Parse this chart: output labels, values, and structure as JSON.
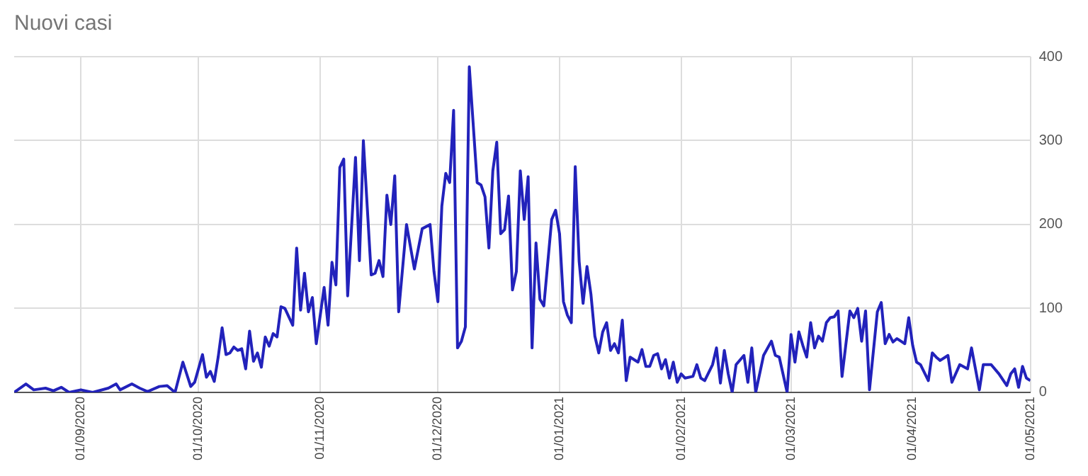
{
  "chart_data": {
    "type": "line",
    "title": "Nuovi casi",
    "x": [
      "2020-08-15",
      "2020-08-18",
      "2020-08-20",
      "2020-08-23",
      "2020-08-25",
      "2020-08-27",
      "2020-08-29",
      "2020-09-01",
      "2020-09-04",
      "2020-09-08",
      "2020-09-10",
      "2020-09-11",
      "2020-09-14",
      "2020-09-16",
      "2020-09-18",
      "2020-09-21",
      "2020-09-23",
      "2020-09-25",
      "2020-09-27",
      "2020-09-29",
      "2020-09-30",
      "2020-10-02",
      "2020-10-03",
      "2020-10-04",
      "2020-10-05",
      "2020-10-06",
      "2020-10-07",
      "2020-10-08",
      "2020-10-09",
      "2020-10-10",
      "2020-10-11",
      "2020-10-12",
      "2020-10-13",
      "2020-10-14",
      "2020-10-15",
      "2020-10-16",
      "2020-10-17",
      "2020-10-18",
      "2020-10-19",
      "2020-10-20",
      "2020-10-21",
      "2020-10-22",
      "2020-10-23",
      "2020-10-25",
      "2020-10-26",
      "2020-10-27",
      "2020-10-28",
      "2020-10-29",
      "2020-10-30",
      "2020-10-31",
      "2020-11-02",
      "2020-11-03",
      "2020-11-04",
      "2020-11-05",
      "2020-11-06",
      "2020-11-07",
      "2020-11-08",
      "2020-11-10",
      "2020-11-11",
      "2020-11-12",
      "2020-11-14",
      "2020-11-15",
      "2020-11-16",
      "2020-11-17",
      "2020-11-18",
      "2020-11-19",
      "2020-11-20",
      "2020-11-21",
      "2020-11-23",
      "2020-11-25",
      "2020-11-27",
      "2020-11-29",
      "2020-11-30",
      "2020-12-01",
      "2020-12-02",
      "2020-12-03",
      "2020-12-04",
      "2020-12-05",
      "2020-12-06",
      "2020-12-07",
      "2020-12-08",
      "2020-12-09",
      "2020-12-11",
      "2020-12-12",
      "2020-12-13",
      "2020-12-14",
      "2020-12-15",
      "2020-12-16",
      "2020-12-17",
      "2020-12-18",
      "2020-12-19",
      "2020-12-20",
      "2020-12-21",
      "2020-12-22",
      "2020-12-23",
      "2020-12-24",
      "2020-12-25",
      "2020-12-26",
      "2020-12-27",
      "2020-12-28",
      "2020-12-30",
      "2020-12-31",
      "2021-01-01",
      "2021-01-02",
      "2021-01-03",
      "2021-01-04",
      "2021-01-05",
      "2021-01-06",
      "2021-01-07",
      "2021-01-08",
      "2021-01-09",
      "2021-01-10",
      "2021-01-11",
      "2021-01-12",
      "2021-01-13",
      "2021-01-14",
      "2021-01-15",
      "2021-01-16",
      "2021-01-17",
      "2021-01-18",
      "2021-01-19",
      "2021-01-20",
      "2021-01-21",
      "2021-01-22",
      "2021-01-23",
      "2021-01-24",
      "2021-01-25",
      "2021-01-26",
      "2021-01-27",
      "2021-01-28",
      "2021-01-29",
      "2021-01-30",
      "2021-01-31",
      "2021-02-01",
      "2021-02-02",
      "2021-02-04",
      "2021-02-05",
      "2021-02-06",
      "2021-02-07",
      "2021-02-09",
      "2021-02-10",
      "2021-02-11",
      "2021-02-12",
      "2021-02-13",
      "2021-02-14",
      "2021-02-15",
      "2021-02-17",
      "2021-02-18",
      "2021-02-19",
      "2021-02-20",
      "2021-02-22",
      "2021-02-24",
      "2021-02-25",
      "2021-02-26",
      "2021-02-28",
      "2021-03-01",
      "2021-03-02",
      "2021-03-03",
      "2021-03-04",
      "2021-03-05",
      "2021-03-06",
      "2021-03-07",
      "2021-03-08",
      "2021-03-09",
      "2021-03-10",
      "2021-03-11",
      "2021-03-12",
      "2021-03-13",
      "2021-03-14",
      "2021-03-16",
      "2021-03-17",
      "2021-03-18",
      "2021-03-19",
      "2021-03-20",
      "2021-03-21",
      "2021-03-23",
      "2021-03-24",
      "2021-03-25",
      "2021-03-26",
      "2021-03-27",
      "2021-03-28",
      "2021-03-29",
      "2021-03-30",
      "2021-03-31",
      "2021-04-01",
      "2021-04-02",
      "2021-04-03",
      "2021-04-05",
      "2021-04-06",
      "2021-04-07",
      "2021-04-08",
      "2021-04-10",
      "2021-04-11",
      "2021-04-13",
      "2021-04-15",
      "2021-04-16",
      "2021-04-17",
      "2021-04-18",
      "2021-04-19",
      "2021-04-21",
      "2021-04-23",
      "2021-04-25",
      "2021-04-26",
      "2021-04-27",
      "2021-04-28",
      "2021-04-29",
      "2021-04-30",
      "2021-05-01"
    ],
    "series": [
      {
        "color": "#2222bb",
        "values": [
          0,
          10,
          3,
          5,
          2,
          6,
          0,
          3,
          0,
          5,
          10,
          3,
          10,
          5,
          1,
          7,
          8,
          0,
          36,
          7,
          12,
          45,
          18,
          25,
          13,
          42,
          77,
          45,
          47,
          54,
          50,
          52,
          28,
          73,
          37,
          47,
          30,
          66,
          55,
          70,
          66,
          102,
          100,
          80,
          172,
          98,
          142,
          96,
          113,
          58,
          125,
          80,
          155,
          128,
          268,
          278,
          115,
          280,
          157,
          300,
          140,
          142,
          157,
          138,
          235,
          200,
          258,
          96,
          200,
          147,
          195,
          200,
          144,
          108,
          222,
          261,
          250,
          336,
          53,
          61,
          78,
          388,
          250,
          247,
          233,
          172,
          264,
          298,
          189,
          194,
          234,
          122,
          144,
          264,
          206,
          257,
          53,
          178,
          111,
          103,
          206,
          217,
          189,
          108,
          92,
          83,
          269,
          156,
          106,
          150,
          117,
          67,
          47,
          72,
          83,
          50,
          58,
          47,
          86,
          14,
          42,
          39,
          36,
          51,
          31,
          31,
          44,
          46,
          28,
          39,
          17,
          36,
          12,
          22,
          17,
          19,
          33,
          17,
          14,
          33,
          53,
          11,
          50,
          22,
          0,
          33,
          44,
          12,
          53,
          0,
          44,
          61,
          44,
          42,
          0,
          69,
          36,
          72,
          56,
          42,
          83,
          53,
          67,
          61,
          83,
          89,
          90,
          97,
          19,
          97,
          89,
          100,
          61,
          97,
          3,
          96,
          107,
          58,
          69,
          60,
          64,
          61,
          58,
          89,
          56,
          36,
          33,
          14,
          47,
          42,
          38,
          44,
          12,
          33,
          28,
          53,
          28,
          3,
          33,
          33,
          22,
          8,
          22,
          28,
          6,
          31,
          17,
          14
        ]
      }
    ],
    "xlim": [
      "2020-08-15",
      "2021-05-01"
    ],
    "xticks": [
      {
        "value": "2020-09-01",
        "label": "01/09/2020"
      },
      {
        "value": "2020-10-01",
        "label": "01/10/2020"
      },
      {
        "value": "2020-11-01",
        "label": "01/11/2020"
      },
      {
        "value": "2020-12-01",
        "label": "01/12/2020"
      },
      {
        "value": "2021-01-01",
        "label": "01/01/2021"
      },
      {
        "value": "2021-02-01",
        "label": "01/02/2021"
      },
      {
        "value": "2021-03-01",
        "label": "01/03/2021"
      },
      {
        "value": "2021-04-01",
        "label": "01/04/2021"
      },
      {
        "value": "2021-05-01",
        "label": "01/05/2021"
      }
    ],
    "ylim": [
      0,
      400
    ],
    "yticks": [
      0,
      100,
      200,
      300,
      400
    ],
    "grid": true,
    "legend": false
  }
}
